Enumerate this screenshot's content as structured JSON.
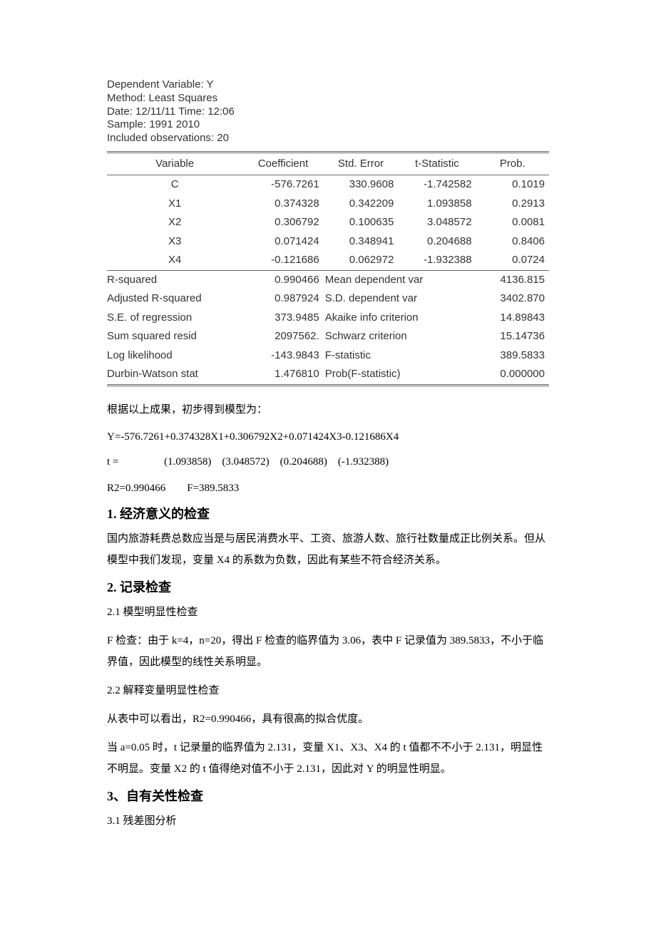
{
  "eviews": {
    "header": {
      "dependent": "Dependent Variable: Y",
      "method": "Method: Least Squares",
      "date": "Date: 12/11/11   Time: 12:06",
      "sample": "Sample: 1991 2010",
      "included": "Included observations: 20"
    },
    "cols": {
      "variable": "Variable",
      "coef": "Coefficient",
      "se": "Std. Error",
      "t": "t-Statistic",
      "prob": "Prob."
    },
    "rows": [
      {
        "var": "C",
        "coef": "-576.7261",
        "se": "330.9608",
        "t": "-1.742582",
        "prob": "0.1019"
      },
      {
        "var": "X1",
        "coef": "0.374328",
        "se": "0.342209",
        "t": "1.093858",
        "prob": "0.2913"
      },
      {
        "var": "X2",
        "coef": "0.306792",
        "se": "0.100635",
        "t": "3.048572",
        "prob": "0.0081"
      },
      {
        "var": "X3",
        "coef": "0.071424",
        "se": "0.348941",
        "t": "0.204688",
        "prob": "0.8406"
      },
      {
        "var": "X4",
        "coef": "-0.121686",
        "se": "0.062972",
        "t": "-1.932388",
        "prob": "0.0724"
      }
    ],
    "stats": [
      {
        "l": "R-squared",
        "lv": "0.990466",
        "r": "Mean dependent var",
        "rv": "4136.815"
      },
      {
        "l": "Adjusted R-squared",
        "lv": "0.987924",
        "r": "S.D. dependent var",
        "rv": "3402.870"
      },
      {
        "l": "S.E. of regression",
        "lv": "373.9485",
        "r": "Akaike info criterion",
        "rv": "14.89843"
      },
      {
        "l": "Sum squared resid",
        "lv": "2097562.",
        "r": "Schwarz criterion",
        "rv": "15.14736"
      },
      {
        "l": "Log likelihood",
        "lv": "-143.9843",
        "r": "F-statistic",
        "rv": "389.5833"
      },
      {
        "l": "Durbin-Watson stat",
        "lv": "1.476810",
        "r": "Prob(F-statistic)",
        "rv": "0.000000"
      }
    ]
  },
  "body": {
    "intro": "根据以上成果，初步得到模型为：",
    "model": "Y=-576.7261+0.374328X1+0.306792X2+0.071424X3-0.121686X4",
    "tline": "t =                 (1.093858)    (3.048572)    (0.204688)    (-1.932388)",
    "r2f": "R2=0.990466        F=389.5833",
    "sec1_title_num": "1.",
    "sec1_title_txt": "经济意义的检查",
    "sec1_p": "国内旅游耗费总数应当是与居民消费水平、工资、旅游人数、旅行社数量成正比例关系。但从模型中我们发现，变量 X4 的系数为负数，因此有某些不符合经济关系。",
    "sec2_title_num": "2.",
    "sec2_title_txt": "记录检查",
    "sec2_sub1": "2.1 模型明显性检查",
    "sec2_p1": "F 检查：由于 k=4，n=20，得出 F 检查的临界值为 3.06，表中 F 记录值为 389.5833，不小于临界值，因此模型的线性关系明显。",
    "sec2_sub2": "2.2 解释变量明显性检查",
    "sec2_p2": "从表中可以看出，R2=0.990466，具有很高的拟合优度。",
    "sec2_p3": "当 a=0.05 时，t 记录量的临界值为 2.131，变量 X1、X3、X4 的 t 值都不不小于 2.131，明显性不明显。变量 X2 的 t 值得绝对值不小于 2.131，因此对 Y 的明显性明显。",
    "sec3_title": "3、自有关性检查",
    "sec3_sub1": "3.1 残差图分析"
  }
}
